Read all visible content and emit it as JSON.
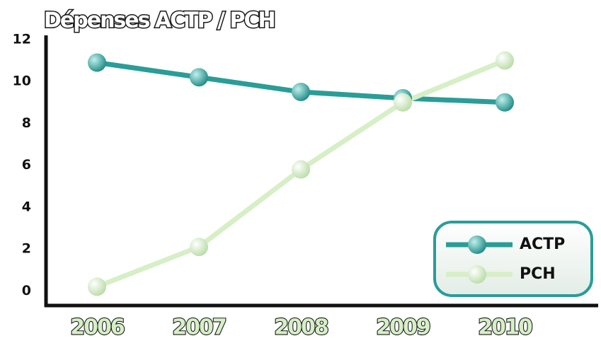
{
  "chart_data": {
    "type": "line",
    "title": "Dépenses ACTP / PCH",
    "categories": [
      "2006",
      "2007",
      "2008",
      "2009",
      "2010"
    ],
    "series": [
      {
        "name": "ACTP",
        "color": "#2a9d98",
        "values": [
          10.9,
          10.2,
          9.5,
          9.2,
          9.0
        ]
      },
      {
        "name": "PCH",
        "color": "#d6efc6",
        "values": [
          0.2,
          2.1,
          5.8,
          9.0,
          11.0
        ]
      }
    ],
    "ylim": [
      -0.7,
      12.2
    ],
    "yticks": [
      0,
      2,
      4,
      6,
      8,
      10,
      12
    ],
    "grid": false,
    "legend": "lower right"
  }
}
